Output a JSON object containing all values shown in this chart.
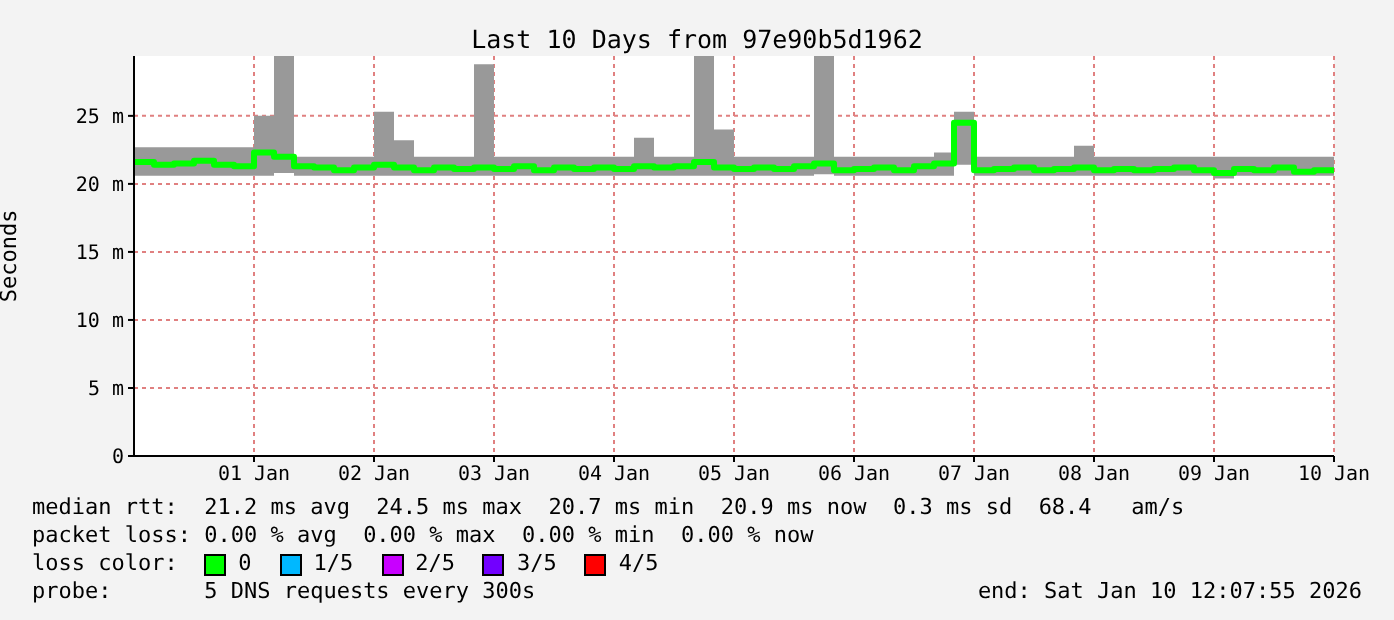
{
  "chart_data": {
    "type": "line",
    "title": "Last 10 Days from 97e90b5d1962",
    "ylabel": "Seconds",
    "legend_title": "loss color:",
    "x": [
      "2025-12-31T12:00",
      "2025-12-31T16:00",
      "2025-12-31T20:00",
      "2026-01-01T00:00",
      "2026-01-01T04:00",
      "2026-01-01T08:00",
      "2026-01-01T12:00",
      "2026-01-01T16:00",
      "2026-01-01T20:00",
      "2026-01-02T00:00",
      "2026-01-02T04:00",
      "2026-01-02T08:00",
      "2026-01-02T12:00",
      "2026-01-02T16:00",
      "2026-01-02T20:00",
      "2026-01-03T00:00",
      "2026-01-03T04:00",
      "2026-01-03T08:00",
      "2026-01-03T12:00",
      "2026-01-03T16:00",
      "2026-01-03T20:00",
      "2026-01-04T00:00",
      "2026-01-04T04:00",
      "2026-01-04T08:00",
      "2026-01-04T12:00",
      "2026-01-04T16:00",
      "2026-01-04T20:00",
      "2026-01-05T00:00",
      "2026-01-05T04:00",
      "2026-01-05T08:00",
      "2026-01-05T12:00",
      "2026-01-05T16:00",
      "2026-01-05T20:00",
      "2026-01-06T00:00",
      "2026-01-06T04:00",
      "2026-01-06T08:00",
      "2026-01-06T12:00",
      "2026-01-06T16:00",
      "2026-01-06T20:00",
      "2026-01-07T00:00",
      "2026-01-07T04:00",
      "2026-01-07T08:00",
      "2026-01-07T12:00",
      "2026-01-07T16:00",
      "2026-01-07T20:00",
      "2026-01-08T00:00",
      "2026-01-08T04:00",
      "2026-01-08T08:00",
      "2026-01-08T12:00",
      "2026-01-08T16:00",
      "2026-01-08T20:00",
      "2026-01-09T00:00",
      "2026-01-09T04:00",
      "2026-01-09T08:00",
      "2026-01-09T12:00",
      "2026-01-09T16:00",
      "2026-01-09T20:00",
      "2026-01-10T00:00",
      "2026-01-10T04:00",
      "2026-01-10T08:00",
      "2026-01-10T12:00"
    ],
    "series": [
      {
        "name": "0",
        "type": "step",
        "color": "#00ff00",
        "values": [
          21.6,
          21.4,
          21.5,
          21.7,
          21.4,
          21.3,
          22.3,
          22.0,
          21.3,
          21.2,
          21.0,
          21.2,
          21.4,
          21.2,
          21.0,
          21.2,
          21.1,
          21.2,
          21.1,
          21.3,
          21.0,
          21.2,
          21.1,
          21.2,
          21.1,
          21.3,
          21.2,
          21.3,
          21.6,
          21.2,
          21.1,
          21.2,
          21.1,
          21.3,
          21.5,
          21.0,
          21.1,
          21.2,
          21.0,
          21.3,
          21.5,
          24.5,
          21.0,
          21.1,
          21.2,
          21.0,
          21.1,
          21.2,
          21.0,
          21.1,
          21.0,
          21.1,
          21.2,
          21.0,
          20.8,
          21.1,
          21.0,
          21.2,
          20.9,
          21.0,
          20.9
        ],
        "lower": [
          20.6,
          20.6,
          20.6,
          20.6,
          20.6,
          20.6,
          20.6,
          20.8,
          20.6,
          20.6,
          20.6,
          20.6,
          20.6,
          20.6,
          20.6,
          20.6,
          20.6,
          20.6,
          20.6,
          20.6,
          20.6,
          20.6,
          20.6,
          20.6,
          20.6,
          20.6,
          20.6,
          20.6,
          20.6,
          20.6,
          20.6,
          20.6,
          20.6,
          20.6,
          20.7,
          20.6,
          20.6,
          20.6,
          20.6,
          20.6,
          20.6,
          21.4,
          20.6,
          20.6,
          20.6,
          20.6,
          20.6,
          20.6,
          20.6,
          20.6,
          20.6,
          20.6,
          20.6,
          20.6,
          20.4,
          20.6,
          20.6,
          20.6,
          20.6,
          20.6,
          20.6
        ],
        "upper": [
          22.7,
          22.7,
          22.7,
          22.7,
          22.7,
          22.7,
          25.0,
          29.4,
          22.0,
          22.0,
          22.0,
          22.0,
          25.3,
          23.2,
          22.0,
          22.0,
          22.0,
          28.8,
          22.0,
          22.0,
          22.0,
          22.0,
          22.0,
          22.0,
          22.0,
          23.4,
          22.0,
          22.0,
          29.4,
          24.0,
          22.0,
          22.0,
          22.0,
          22.0,
          29.4,
          22.0,
          22.0,
          22.0,
          22.0,
          22.0,
          22.3,
          25.3,
          22.0,
          22.0,
          22.0,
          22.0,
          22.0,
          22.8,
          22.0,
          22.0,
          22.0,
          22.0,
          22.0,
          22.0,
          22.0,
          22.0,
          22.0,
          22.0,
          22.0,
          22.0,
          22.0
        ]
      },
      {
        "name": "1/5",
        "type": "step",
        "color": "#00b8ff",
        "values": [
          null,
          null,
          null,
          null,
          null,
          null,
          null,
          null,
          null,
          null,
          null,
          null,
          null,
          null,
          null,
          null,
          null,
          null,
          null,
          null,
          null,
          null,
          null,
          null,
          null,
          null,
          null,
          null,
          null,
          null,
          null,
          null,
          null,
          null,
          null,
          null,
          null,
          null,
          null,
          null,
          null,
          null,
          null,
          null,
          null,
          null,
          null,
          null,
          null,
          null,
          null,
          null,
          null,
          null,
          null,
          null,
          null,
          null,
          null,
          null,
          null
        ]
      },
      {
        "name": "2/5",
        "type": "step",
        "color": "#c800ff",
        "values": [
          null,
          null,
          null,
          null,
          null,
          null,
          null,
          null,
          null,
          null,
          null,
          null,
          null,
          null,
          null,
          null,
          null,
          null,
          null,
          null,
          null,
          null,
          null,
          null,
          null,
          null,
          null,
          null,
          null,
          null,
          null,
          null,
          null,
          null,
          null,
          null,
          null,
          null,
          null,
          null,
          null,
          null,
          null,
          null,
          null,
          null,
          null,
          null,
          null,
          null,
          null,
          null,
          null,
          null,
          null,
          null,
          null,
          null,
          null,
          null,
          null
        ]
      },
      {
        "name": "3/5",
        "type": "step",
        "color": "#7200ff",
        "values": [
          null,
          null,
          null,
          null,
          null,
          null,
          null,
          null,
          null,
          null,
          null,
          null,
          null,
          null,
          null,
          null,
          null,
          null,
          null,
          null,
          null,
          null,
          null,
          null,
          null,
          null,
          null,
          null,
          null,
          null,
          null,
          null,
          null,
          null,
          null,
          null,
          null,
          null,
          null,
          null,
          null,
          null,
          null,
          null,
          null,
          null,
          null,
          null,
          null,
          null,
          null,
          null,
          null,
          null,
          null,
          null,
          null,
          null,
          null,
          null,
          null
        ]
      },
      {
        "name": "4/5",
        "type": "step",
        "color": "#ff0000",
        "values": [
          null,
          null,
          null,
          null,
          null,
          null,
          null,
          null,
          null,
          null,
          null,
          null,
          null,
          null,
          null,
          null,
          null,
          null,
          null,
          null,
          null,
          null,
          null,
          null,
          null,
          null,
          null,
          null,
          null,
          null,
          null,
          null,
          null,
          null,
          null,
          null,
          null,
          null,
          null,
          null,
          null,
          null,
          null,
          null,
          null,
          null,
          null,
          null,
          null,
          null,
          null,
          null,
          null,
          null,
          null,
          null,
          null,
          null,
          null,
          null,
          null
        ]
      }
    ],
    "ylim": [
      0,
      29.4
    ],
    "yticks": [
      0,
      {
        "value": 5,
        "label": "5 m"
      },
      {
        "value": 10,
        "label": "10 m"
      },
      {
        "value": 15,
        "label": "15 m"
      },
      {
        "value": 20,
        "label": "20 m"
      },
      {
        "value": 25,
        "label": "25 m"
      }
    ],
    "xlim": [
      "2025-12-31T12:00",
      "2026-01-10T12:00"
    ],
    "xticks": [
      {
        "value": "2026-01-01T12:00",
        "label": "01 Jan"
      },
      {
        "value": "2026-01-02T12:00",
        "label": "02 Jan"
      },
      {
        "value": "2026-01-03T12:00",
        "label": "03 Jan"
      },
      {
        "value": "2026-01-04T12:00",
        "label": "04 Jan"
      },
      {
        "value": "2026-01-05T12:00",
        "label": "05 Jan"
      },
      {
        "value": "2026-01-06T12:00",
        "label": "06 Jan"
      },
      {
        "value": "2026-01-07T12:00",
        "label": "07 Jan"
      },
      {
        "value": "2026-01-08T12:00",
        "label": "08 Jan"
      },
      {
        "value": "2026-01-09T12:00",
        "label": "09 Jan"
      },
      {
        "value": "2026-01-10T12:00",
        "label": "10 Jan"
      }
    ],
    "grid": true,
    "legend": "bottom",
    "line_style": "solid",
    "annotations": [
      "median rtt:  21.2 ms avg  24.5 ms max  20.7 ms min  20.9 ms now  0.3 ms sd  68.4   am/s",
      "packet loss: 0.00 % avg  0.00 % max  0.00 % min  0.00 % now",
      "probe:       5 DNS requests every 300s",
      "end: Sat Jan 10 12:07:55 2026"
    ]
  }
}
